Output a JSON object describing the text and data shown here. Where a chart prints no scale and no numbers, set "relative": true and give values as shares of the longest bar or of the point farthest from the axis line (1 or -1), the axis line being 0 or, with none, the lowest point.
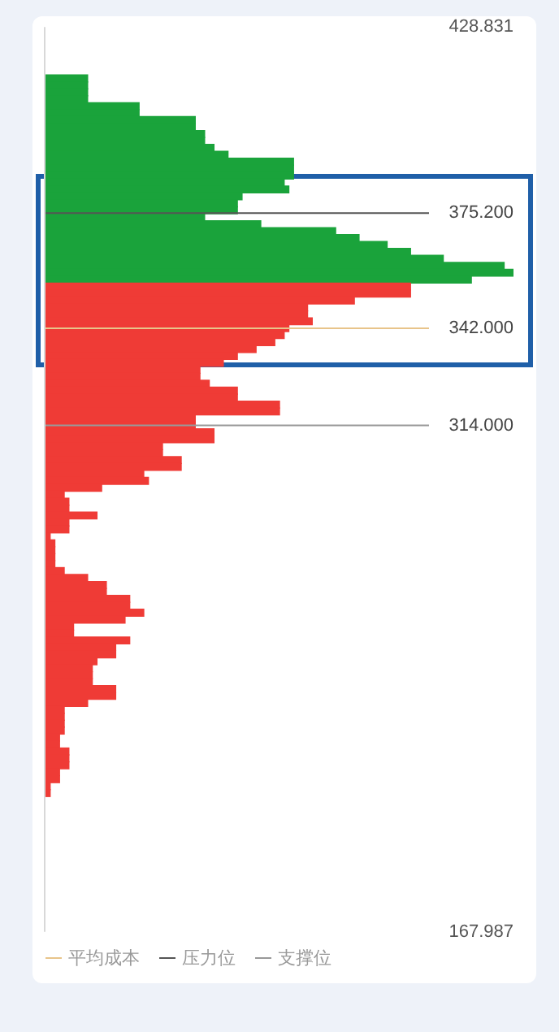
{
  "chart_data": {
    "type": "bar",
    "orientation": "horizontal",
    "relative": true,
    "x": [
      414,
      412,
      410,
      408,
      406,
      404,
      402,
      400,
      398,
      396,
      394,
      392,
      390,
      388,
      386,
      384,
      382,
      380,
      378,
      376,
      374,
      372,
      370,
      368,
      366,
      364,
      362,
      360,
      358,
      356,
      354,
      352,
      350,
      348,
      346,
      344,
      342,
      340,
      338,
      336,
      334,
      332,
      330,
      328,
      326,
      324,
      322,
      320,
      318,
      316,
      314,
      312,
      310,
      308,
      306,
      304,
      302,
      300,
      298,
      296,
      294,
      292,
      290,
      288,
      286,
      284,
      282,
      280,
      278,
      276,
      274,
      272,
      270,
      268,
      266,
      264,
      262,
      260,
      258,
      256,
      254,
      252,
      250,
      248,
      246,
      244,
      242,
      240,
      238,
      236,
      234,
      232,
      230,
      228,
      226,
      224,
      222,
      220,
      218,
      216,
      214,
      212,
      210,
      208
    ],
    "values": [
      0.09,
      0.09,
      0.09,
      0.09,
      0.2,
      0.2,
      0.32,
      0.32,
      0.34,
      0.34,
      0.36,
      0.39,
      0.53,
      0.53,
      0.53,
      0.51,
      0.52,
      0.42,
      0.41,
      0.41,
      0.34,
      0.46,
      0.62,
      0.67,
      0.73,
      0.78,
      0.85,
      0.98,
      1,
      0.91,
      0.78,
      0.78,
      0.66,
      0.56,
      0.56,
      0.57,
      0.52,
      0.51,
      0.49,
      0.45,
      0.41,
      0.38,
      0.33,
      0.33,
      0.35,
      0.41,
      0.41,
      0.5,
      0.5,
      0.32,
      0.32,
      0.36,
      0.36,
      0.25,
      0.25,
      0.29,
      0.29,
      0.21,
      0.22,
      0.12,
      0.04,
      0.05,
      0.05,
      0.11,
      0.05,
      0.05,
      0.01,
      0.02,
      0.02,
      0.02,
      0.02,
      0.04,
      0.09,
      0.13,
      0.13,
      0.18,
      0.18,
      0.21,
      0.17,
      0.06,
      0.06,
      0.18,
      0.15,
      0.15,
      0.11,
      0.1,
      0.1,
      0.1,
      0.15,
      0.15,
      0.09,
      0.04,
      0.04,
      0.04,
      0.04,
      0.03,
      0.03,
      0.05,
      0.05,
      0.05,
      0.03,
      0.03,
      0.01,
      0.01
    ],
    "colors": [
      "#1aa33b",
      "#1aa33b",
      "#1aa33b",
      "#1aa33b",
      "#1aa33b",
      "#1aa33b",
      "#1aa33b",
      "#1aa33b",
      "#1aa33b",
      "#1aa33b",
      "#1aa33b",
      "#1aa33b",
      "#1aa33b",
      "#1aa33b",
      "#1aa33b",
      "#1aa33b",
      "#1aa33b",
      "#1aa33b",
      "#1aa33b",
      "#1aa33b",
      "#1aa33b",
      "#1aa33b",
      "#1aa33b",
      "#1aa33b",
      "#1aa33b",
      "#1aa33b",
      "#1aa33b",
      "#1aa33b",
      "#1aa33b",
      "#1aa33b",
      "#ef3b36",
      "#ef3b36",
      "#ef3b36",
      "#ef3b36",
      "#ef3b36",
      "#ef3b36",
      "#ef3b36",
      "#ef3b36",
      "#ef3b36",
      "#ef3b36",
      "#ef3b36",
      "#ef3b36",
      "#ef3b36",
      "#ef3b36",
      "#ef3b36",
      "#ef3b36",
      "#ef3b36",
      "#ef3b36",
      "#ef3b36",
      "#ef3b36",
      "#ef3b36",
      "#ef3b36",
      "#ef3b36",
      "#ef3b36",
      "#ef3b36",
      "#ef3b36",
      "#ef3b36",
      "#ef3b36",
      "#ef3b36",
      "#ef3b36",
      "#ef3b36",
      "#ef3b36",
      "#ef3b36",
      "#ef3b36",
      "#ef3b36",
      "#ef3b36",
      "#ef3b36",
      "#ef3b36",
      "#ef3b36",
      "#ef3b36",
      "#ef3b36",
      "#ef3b36",
      "#ef3b36",
      "#ef3b36",
      "#ef3b36",
      "#ef3b36",
      "#ef3b36",
      "#ef3b36",
      "#ef3b36",
      "#ef3b36",
      "#ef3b36",
      "#ef3b36",
      "#ef3b36",
      "#ef3b36",
      "#ef3b36",
      "#ef3b36",
      "#ef3b36",
      "#ef3b36",
      "#ef3b36",
      "#ef3b36",
      "#ef3b36",
      "#ef3b36",
      "#ef3b36",
      "#ef3b36",
      "#ef3b36",
      "#ef3b36",
      "#ef3b36",
      "#ef3b36",
      "#ef3b36",
      "#ef3b36",
      "#ef3b36",
      "#ef3b36",
      "#ef3b36",
      "#ef3b36"
    ],
    "ylim": [
      167.987,
      428.831
    ],
    "yticks": [
      {
        "value": 428.831,
        "label": "428.831"
      },
      {
        "value": 167.987,
        "label": "167.987"
      }
    ],
    "ref_lines": [
      {
        "axis": "y",
        "value": 342,
        "label": "342.000",
        "color": "#e8c48a"
      },
      {
        "axis": "y",
        "value": 375.2,
        "label": "375.200",
        "color": "#555555"
      },
      {
        "axis": "y",
        "value": 314,
        "label": "314.000",
        "color": "#999999"
      }
    ],
    "annotations": [
      "平均成本",
      "压力位",
      "支撑位"
    ],
    "grid": false,
    "legend": false
  }
}
